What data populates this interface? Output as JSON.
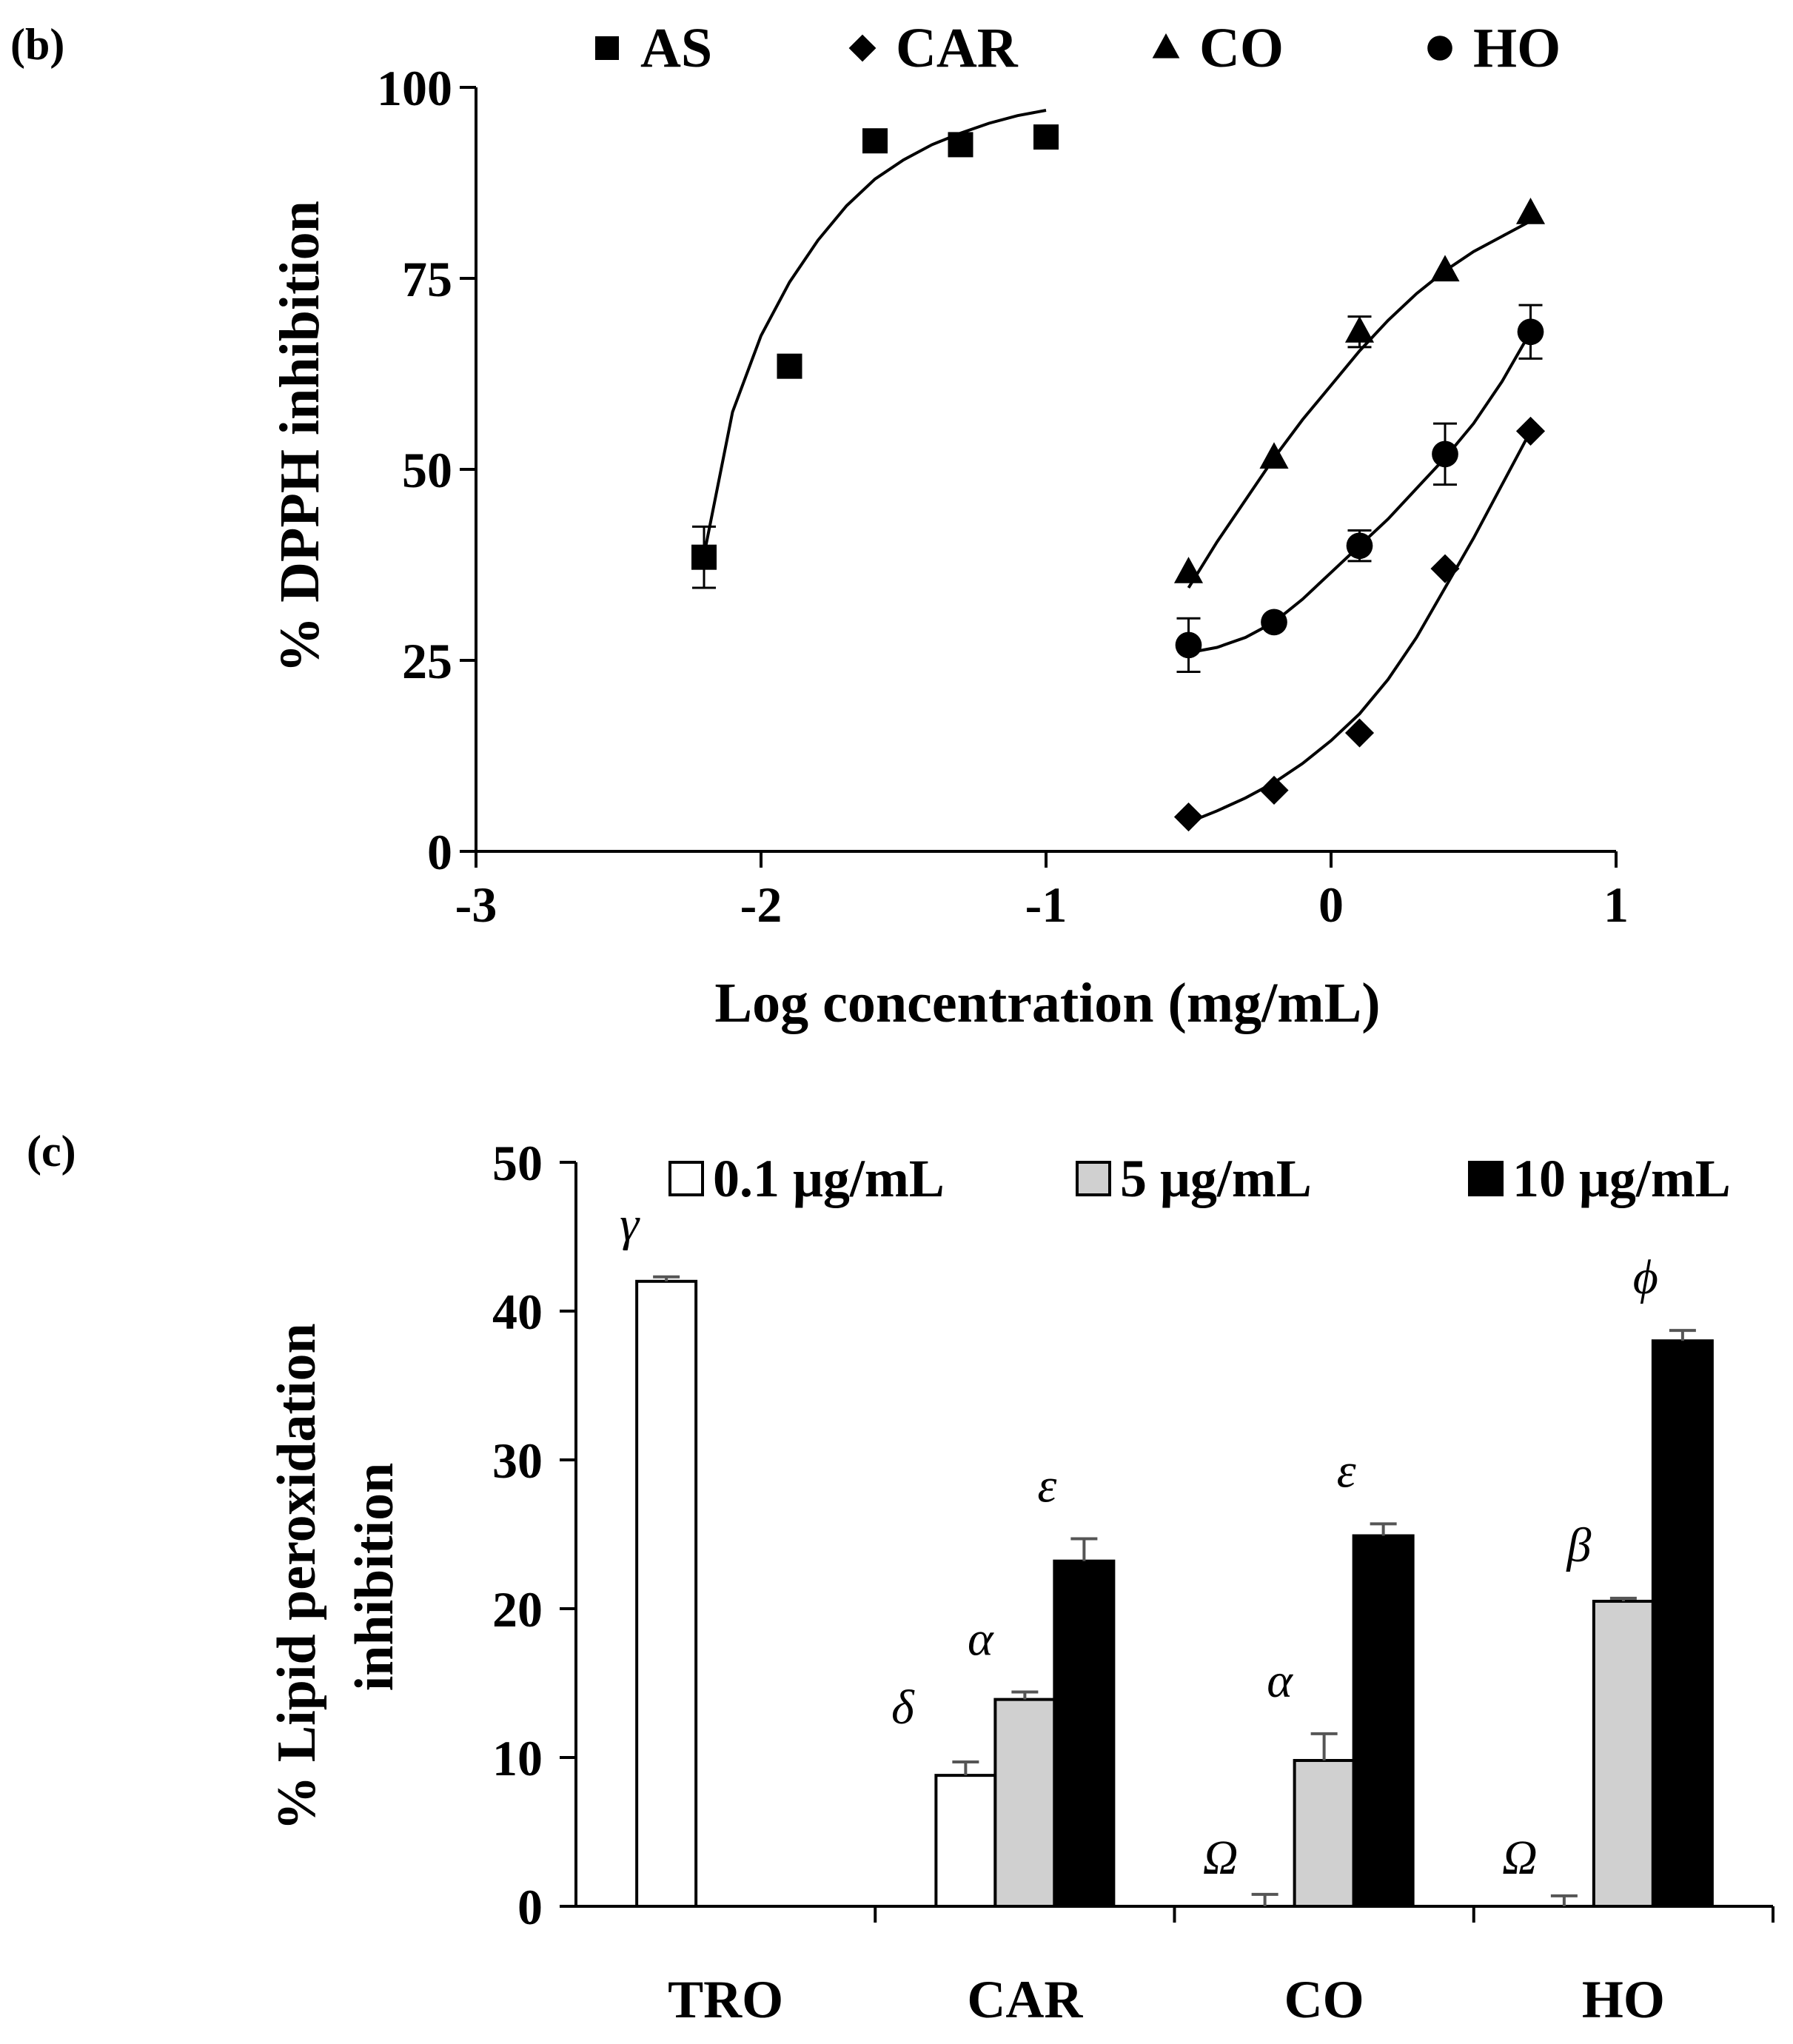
{
  "chart_data": [
    {
      "panel_label": "(b)",
      "type": "scatter",
      "title": "",
      "xlabel": "Log concentration (mg/mL)",
      "ylabel": "% DPPH inhibition",
      "xlim": [
        -3,
        1
      ],
      "ylim": [
        0,
        100
      ],
      "xticks": [
        "-3",
        "-2",
        "-1",
        "0",
        "1"
      ],
      "yticks": [
        "0",
        "25",
        "50",
        "75",
        "100"
      ],
      "legend_position": "top",
      "series": [
        {
          "name": "AS",
          "marker": "square",
          "points": [
            {
              "x": -2.2,
              "y": 38.5,
              "err": 4.0
            },
            {
              "x": -1.9,
              "y": 63.5,
              "err": 0
            },
            {
              "x": -1.6,
              "y": 93.0,
              "err": 0
            },
            {
              "x": -1.3,
              "y": 92.5,
              "err": 0
            },
            {
              "x": -1.0,
              "y": 93.5,
              "err": 0
            }
          ],
          "fit": [
            [
              -2.2,
              38.8
            ],
            [
              -2.1,
              57.5
            ],
            [
              -2.0,
              67.5
            ],
            [
              -1.9,
              74.5
            ],
            [
              -1.8,
              80.0
            ],
            [
              -1.7,
              84.5
            ],
            [
              -1.6,
              88.0
            ],
            [
              -1.5,
              90.5
            ],
            [
              -1.4,
              92.5
            ],
            [
              -1.3,
              94.0
            ],
            [
              -1.2,
              95.3
            ],
            [
              -1.1,
              96.3
            ],
            [
              -1.0,
              97.0
            ]
          ]
        },
        {
          "name": "CAR",
          "marker": "diamond",
          "points": [
            {
              "x": -0.5,
              "y": 4.5,
              "err": 0
            },
            {
              "x": -0.2,
              "y": 8.0,
              "err": 0
            },
            {
              "x": 0.1,
              "y": 15.5,
              "err": 0
            },
            {
              "x": 0.4,
              "y": 37.0,
              "err": 0
            },
            {
              "x": 0.7,
              "y": 55.0,
              "err": 0
            }
          ],
          "fit": [
            [
              -0.5,
              3.8
            ],
            [
              -0.4,
              5.3
            ],
            [
              -0.3,
              7.0
            ],
            [
              -0.2,
              9.0
            ],
            [
              -0.1,
              11.5
            ],
            [
              0.0,
              14.5
            ],
            [
              0.1,
              18.0
            ],
            [
              0.2,
              22.5
            ],
            [
              0.3,
              28.0
            ],
            [
              0.4,
              34.5
            ],
            [
              0.5,
              41.0
            ],
            [
              0.6,
              48.0
            ],
            [
              0.7,
              55.0
            ]
          ]
        },
        {
          "name": "CO",
          "marker": "triangle",
          "points": [
            {
              "x": -0.5,
              "y": 36.5,
              "err": 0
            },
            {
              "x": -0.2,
              "y": 51.5,
              "err": 0
            },
            {
              "x": 0.1,
              "y": 68.0,
              "err": 2.0
            },
            {
              "x": 0.4,
              "y": 76.0,
              "err": 0
            },
            {
              "x": 0.7,
              "y": 83.5,
              "err": 0
            }
          ],
          "fit": [
            [
              -0.5,
              34.5
            ],
            [
              -0.4,
              40.5
            ],
            [
              -0.3,
              46.0
            ],
            [
              -0.2,
              51.5
            ],
            [
              -0.1,
              56.5
            ],
            [
              0.0,
              61.0
            ],
            [
              0.1,
              65.5
            ],
            [
              0.2,
              69.5
            ],
            [
              0.3,
              73.0
            ],
            [
              0.4,
              76.0
            ],
            [
              0.5,
              78.5
            ],
            [
              0.6,
              80.5
            ],
            [
              0.7,
              82.5
            ]
          ]
        },
        {
          "name": "HO",
          "marker": "circle",
          "points": [
            {
              "x": -0.5,
              "y": 27.0,
              "err": 3.5
            },
            {
              "x": -0.2,
              "y": 30.0,
              "err": 0
            },
            {
              "x": 0.1,
              "y": 40.0,
              "err": 2.0
            },
            {
              "x": 0.4,
              "y": 52.0,
              "err": 4.0
            },
            {
              "x": 0.7,
              "y": 68.0,
              "err": 3.5
            }
          ],
          "fit": [
            [
              -0.5,
              26.0
            ],
            [
              -0.4,
              26.7
            ],
            [
              -0.3,
              28.0
            ],
            [
              -0.2,
              30.0
            ],
            [
              -0.1,
              33.0
            ],
            [
              0.0,
              36.5
            ],
            [
              0.1,
              40.0
            ],
            [
              0.2,
              43.5
            ],
            [
              0.3,
              47.5
            ],
            [
              0.4,
              51.5
            ],
            [
              0.5,
              56.0
            ],
            [
              0.6,
              61.5
            ],
            [
              0.7,
              68.0
            ]
          ]
        }
      ]
    },
    {
      "panel_label": "(c)",
      "type": "bar",
      "title": "",
      "xlabel": "",
      "ylabel_lines": [
        "% Lipid peroxidation",
        "inhibition"
      ],
      "ylim": [
        0,
        50
      ],
      "yticks": [
        "0",
        "10",
        "20",
        "30",
        "40",
        "50"
      ],
      "categories": [
        "TRO",
        "CAR",
        "CO",
        "HO"
      ],
      "legend_position": "top",
      "series": [
        {
          "name": "0.1 μg/mL",
          "fill": "#ffffff",
          "values": [
            42.0,
            8.8,
            0,
            0
          ],
          "errors": [
            0.3,
            0.9,
            0.8,
            0.7
          ],
          "labels": [
            "γ",
            "δ",
            "Ω",
            "Ω"
          ]
        },
        {
          "name": "5 μg/mL",
          "fill": "#d0d0d0",
          "values": [
            null,
            13.9,
            9.8,
            20.5
          ],
          "errors": [
            0,
            0.5,
            1.8,
            0.2
          ],
          "labels": [
            "",
            "α",
            "α",
            "β"
          ]
        },
        {
          "name": "10 μg/mL",
          "fill": "#000000",
          "values": [
            null,
            23.2,
            24.9,
            38.0
          ],
          "errors": [
            0,
            1.5,
            0.8,
            0.7
          ],
          "labels": [
            "",
            "ε",
            "ε",
            "ϕ"
          ]
        }
      ]
    }
  ]
}
